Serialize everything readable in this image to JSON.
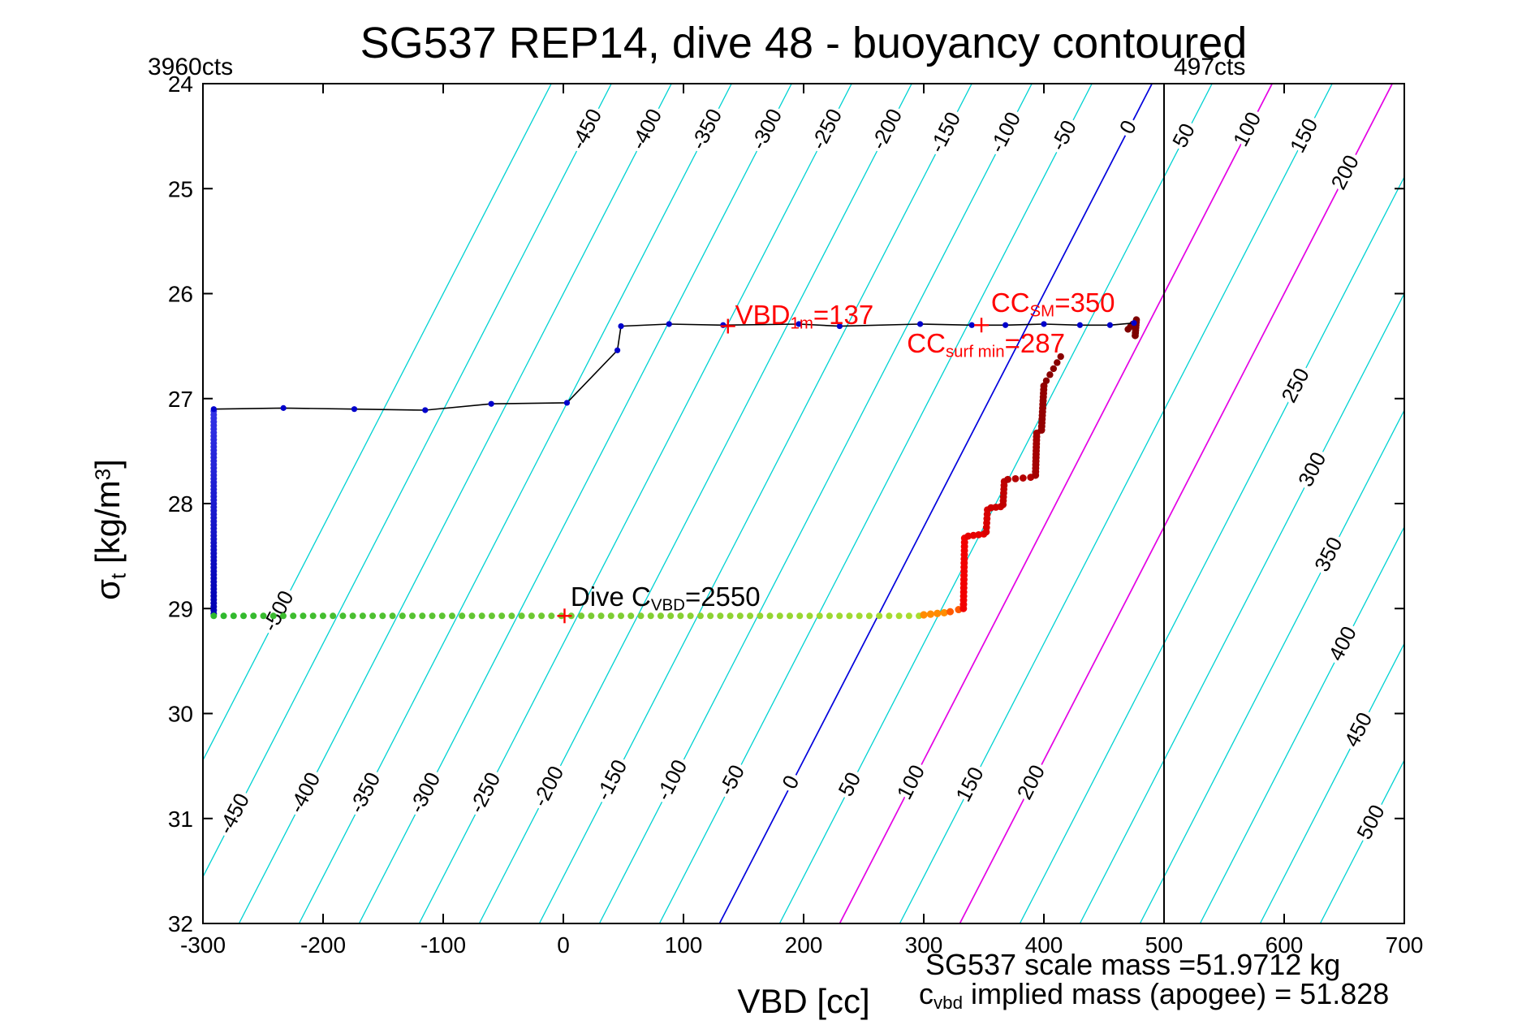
{
  "title": "SG537 REP14, dive 48 - buoyancy contoured",
  "corner_labels": {
    "top_left": "3960cts",
    "top_right": "497cts"
  },
  "xlabel": "VBD [cc]",
  "ylabel": {
    "sym": "σ",
    "sub": "t",
    "unit_pre": " [kg/m",
    "unit_sup": "3",
    "unit_post": "]"
  },
  "footer": {
    "line1": "SG537 scale mass =51.9712 kg",
    "line2_pre": "c",
    "line2_sub": "vbd",
    "line2_post": " implied mass (apogee) = 51.828"
  },
  "annotations": [
    {
      "name": "vbd-1m-label",
      "color": "#ff0000",
      "x": 143,
      "sigma": 26.28,
      "parts": [
        {
          "t": "VBD"
        },
        {
          "t": "1m",
          "sub": true
        },
        {
          "t": "=137"
        }
      ]
    },
    {
      "name": "cc-sm-label",
      "color": "#ff0000",
      "x": 356,
      "sigma": 26.17,
      "parts": [
        {
          "t": "CC"
        },
        {
          "t": "SM",
          "sub": true
        },
        {
          "t": "=350"
        }
      ]
    },
    {
      "name": "cc-surf-min-label",
      "color": "#ff0000",
      "x": 286,
      "sigma": 26.55,
      "parts": [
        {
          "t": "CC"
        },
        {
          "t": "surf min",
          "sub": true
        },
        {
          "t": "=287"
        }
      ]
    },
    {
      "name": "dive-c-label",
      "color": "#000000",
      "x": 6,
      "sigma": 28.97,
      "parts": [
        {
          "t": "Dive C"
        },
        {
          "t": "VBD",
          "sub": true
        },
        {
          "t": "=2550"
        }
      ]
    }
  ],
  "chart_data": {
    "type": "scatter",
    "title": "SG537 REP14, dive 48 - buoyancy contoured",
    "xlabel": "VBD [cc]",
    "ylabel": "sigma_t [kg/m^3]",
    "xlim": [
      -300,
      700
    ],
    "ylim": [
      24,
      32
    ],
    "y_axis_inverted": true,
    "x_ticks": [
      -300,
      -200,
      -100,
      0,
      100,
      200,
      300,
      400,
      500,
      600,
      700
    ],
    "y_ticks": [
      24,
      25,
      26,
      27,
      28,
      29,
      30,
      31,
      32
    ],
    "contours": {
      "comment": "buoyancy contours in cc: VBD(sigma,B) = 490 - 45*(sigma-24) + B",
      "level_min": -500,
      "level_max": 500,
      "step": 50,
      "vbd_neutral_at_sigma24": 490,
      "dvbd_dsigma": -45,
      "color": "#00d2d2",
      "special_colors": {
        "0": "#0000dd",
        "100": "#e400e4",
        "200": "#e400e4"
      },
      "labels": [
        {
          "v": -450,
          "s": 24.44
        },
        {
          "v": -400,
          "s": 24.44
        },
        {
          "v": -350,
          "s": 24.44
        },
        {
          "v": -300,
          "s": 24.44
        },
        {
          "v": -250,
          "s": 24.44
        },
        {
          "v": -200,
          "s": 24.44
        },
        {
          "v": -150,
          "s": 24.47
        },
        {
          "v": -100,
          "s": 24.47
        },
        {
          "v": -50,
          "s": 24.5
        },
        {
          "v": 0,
          "s": 24.42
        },
        {
          "v": 50,
          "s": 24.5
        },
        {
          "v": 100,
          "s": 24.44
        },
        {
          "v": 150,
          "s": 24.5
        },
        {
          "v": 200,
          "s": 24.85
        },
        {
          "v": -450,
          "s": 30.96
        },
        {
          "v": -400,
          "s": 30.76
        },
        {
          "v": -350,
          "s": 30.76
        },
        {
          "v": -300,
          "s": 30.76
        },
        {
          "v": -250,
          "s": 30.76
        },
        {
          "v": -200,
          "s": 30.7
        },
        {
          "v": -150,
          "s": 30.64
        },
        {
          "v": -100,
          "s": 30.64
        },
        {
          "v": -50,
          "s": 30.64
        },
        {
          "v": 0,
          "s": 30.66
        },
        {
          "v": 50,
          "s": 30.68
        },
        {
          "v": 100,
          "s": 30.66
        },
        {
          "v": 150,
          "s": 30.68
        },
        {
          "v": 200,
          "s": 30.66
        },
        {
          "v": 250,
          "s": 26.88
        },
        {
          "v": 300,
          "s": 27.68
        },
        {
          "v": 350,
          "s": 28.49
        },
        {
          "v": 400,
          "s": 29.34
        },
        {
          "v": 450,
          "s": 30.16
        },
        {
          "v": 500,
          "s": 31.04
        },
        {
          "v": -500,
          "s": 29.03
        }
      ]
    },
    "vline": {
      "x": 500,
      "color": "#000000"
    },
    "series": {
      "descent": {
        "name": "dive descent at full VBD retract",
        "x": -291,
        "sigma_start": 27.12,
        "sigma_end": 29.05,
        "n": 58,
        "color_start": "#3333e6",
        "color_end": "#0000b3",
        "r": 4.0
      },
      "apogee": {
        "name": "apogee VBD pump at sigma 29.07",
        "sigma": 29.07,
        "x_start": -291,
        "x_end": 296,
        "n": 72,
        "color_stops": [
          [
            0,
            "#2eb82e"
          ],
          [
            0.55,
            "#7ccc33"
          ],
          [
            1,
            "#aadd30"
          ]
        ],
        "r": 4.0
      },
      "climb": [
        {
          "x0": 300,
          "x1": 317,
          "s0": 29.06,
          "s1": 29.04,
          "n": 4,
          "color": "#ff8c00",
          "r": 4.6
        },
        {
          "x0": 322,
          "x1": 329,
          "s0": 29.03,
          "s1": 29.01,
          "n": 2,
          "color": "#ff5a00",
          "r": 4.5
        },
        {
          "x0": 333,
          "x1": 334,
          "s0": 29.0,
          "s1": 28.33,
          "n": 18,
          "color": "#f20000",
          "r": 4.5
        },
        {
          "x0": 337,
          "x1": 350,
          "s0": 28.31,
          "s1": 28.29,
          "n": 4,
          "color": "#e60000",
          "r": 4.4
        },
        {
          "x0": 352,
          "x1": 353,
          "s0": 28.27,
          "s1": 28.06,
          "n": 6,
          "color": "#d80000",
          "r": 4.4
        },
        {
          "x0": 356,
          "x1": 364,
          "s0": 28.04,
          "s1": 28.03,
          "n": 3,
          "color": "#cc0000",
          "r": 4.4
        },
        {
          "x0": 366,
          "x1": 367,
          "s0": 28.01,
          "s1": 27.79,
          "n": 7,
          "color": "#c00000",
          "r": 4.4
        },
        {
          "x0": 370,
          "x1": 389,
          "s0": 27.77,
          "s1": 27.75,
          "n": 4,
          "color": "#b40000",
          "r": 4.4
        },
        {
          "x0": 393,
          "x1": 394,
          "s0": 27.73,
          "s1": 27.33,
          "n": 13,
          "color": "#a40000",
          "r": 4.5
        },
        {
          "x0": 398,
          "x1": 400,
          "s0": 27.3,
          "s1": 26.88,
          "n": 13,
          "color": "#940000",
          "r": 4.5
        },
        {
          "x0": 402,
          "x1": 414,
          "s0": 26.83,
          "s1": 26.6,
          "n": 5,
          "color": "#8a0000",
          "r": 4.2
        },
        {
          "x0": 470,
          "x1": 474,
          "s0": 26.34,
          "s1": 26.29,
          "n": 3,
          "color": "#7e0000",
          "r": 4.2
        },
        {
          "x0": 476,
          "x1": 477,
          "s0": 26.4,
          "s1": 26.25,
          "n": 7,
          "color": "#7e0000",
          "r": 4.4
        }
      ],
      "surface_track": {
        "name": "1m / surface track",
        "line_color": "#000000",
        "marker_color": "#0000cc",
        "marker_r": 3.6,
        "points": [
          [
            -291,
            27.1
          ],
          [
            -233,
            27.09
          ],
          [
            -174,
            27.1
          ],
          [
            -115,
            27.11
          ],
          [
            -60,
            27.05
          ],
          [
            3,
            27.04
          ],
          [
            45,
            26.54
          ],
          [
            48,
            26.31
          ],
          [
            88,
            26.29
          ],
          [
            133,
            26.3
          ],
          [
            196,
            26.29
          ],
          [
            230,
            26.31
          ],
          [
            297,
            26.29
          ],
          [
            340,
            26.3
          ],
          [
            368,
            26.3
          ],
          [
            400,
            26.29
          ],
          [
            430,
            26.3
          ],
          [
            455,
            26.3
          ],
          [
            475,
            26.28
          ]
        ]
      },
      "plus_markers": {
        "color": "#ff0000",
        "half_size": 9,
        "points": [
          [
            137,
            26.31
          ],
          [
            348,
            26.3
          ],
          [
            1,
            29.07
          ]
        ]
      }
    }
  }
}
